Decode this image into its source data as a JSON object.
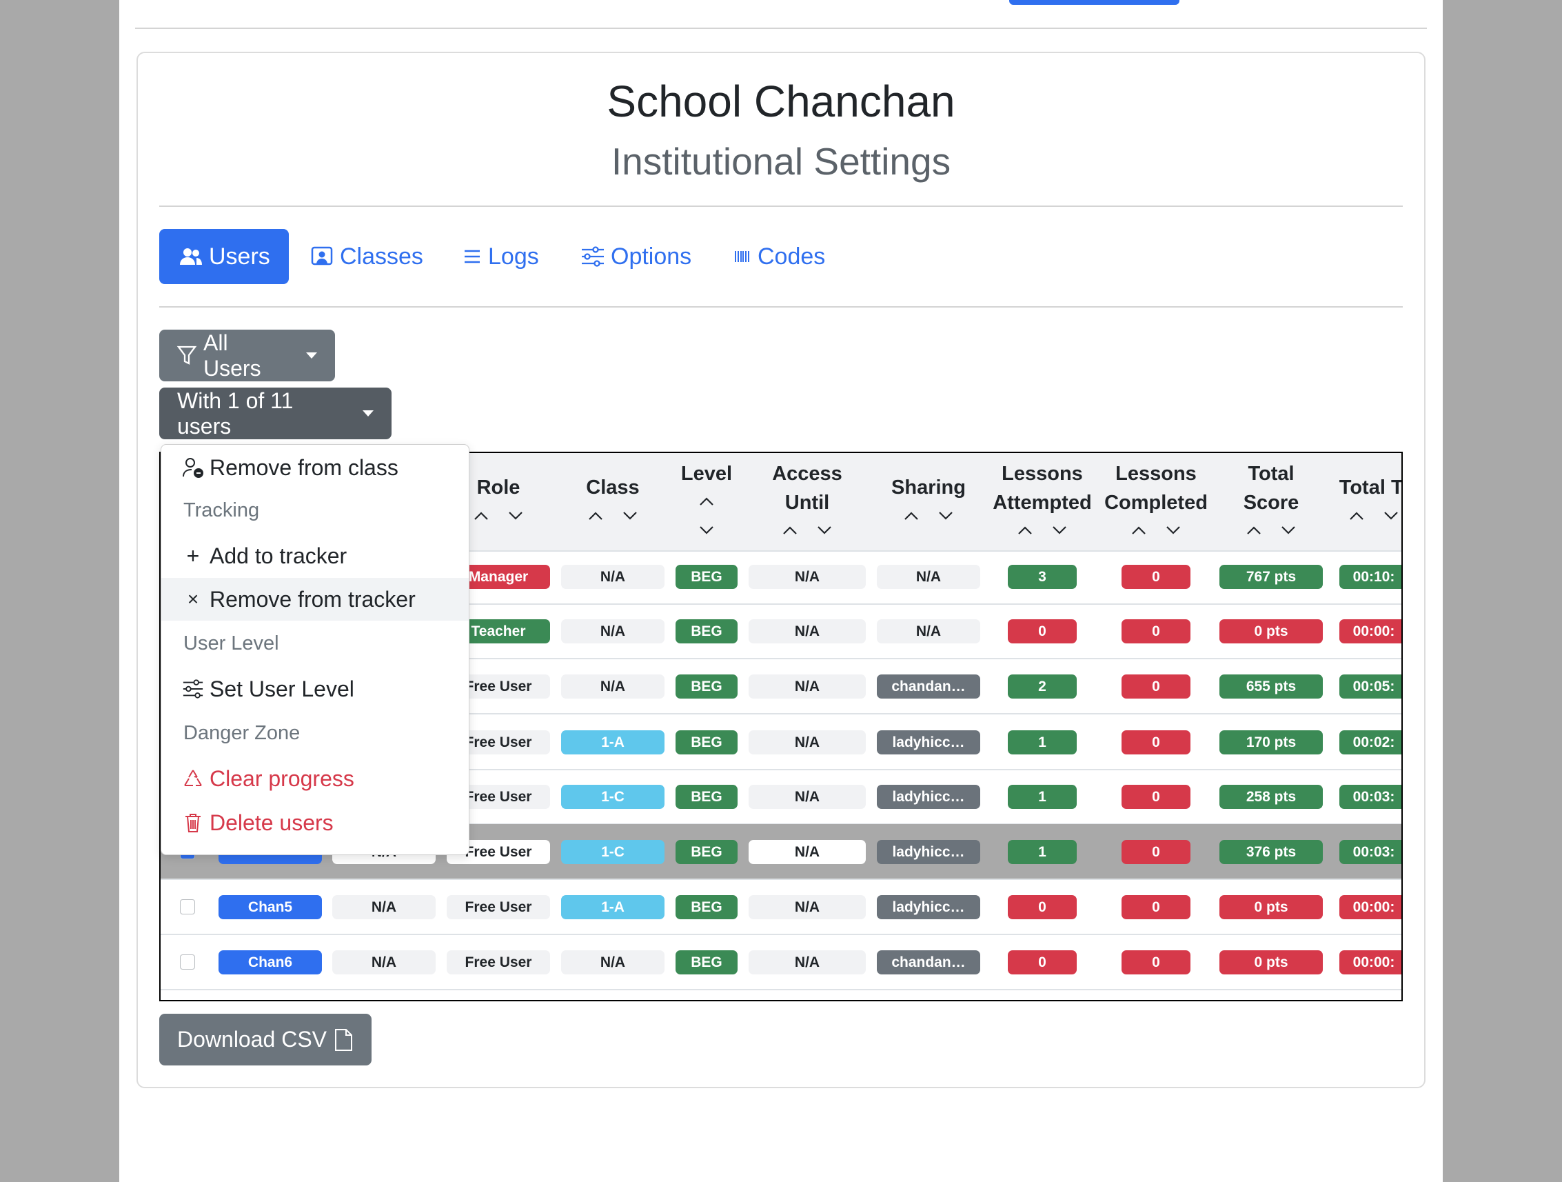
{
  "header": {
    "title": "School Chanchan",
    "subtitle": "Institutional Settings"
  },
  "tabs": [
    "Users",
    "Classes",
    "Logs",
    "Options",
    "Codes"
  ],
  "filter_button": "All Users",
  "action_button": "With 1 of 11 users",
  "menu": [
    "Remove from class",
    "Tracking",
    "Add to tracker",
    "Remove from tracker",
    "User Level",
    "Set User Level",
    "Danger Zone",
    "Clear progress",
    "Delete users"
  ],
  "table": {
    "headers": [
      null,
      null,
      "Role",
      "Class",
      "Level",
      "Access Until",
      "Sharing",
      "Lessons Attempted",
      "Lessons Completed",
      "Total Score",
      "Total Ti"
    ],
    "palette": {
      "b": "#2f6fef",
      "l": "#f1f2f4",
      "w": "#ffffff",
      "r": "#d6394a",
      "g": "#3b8a55",
      "c": "#5fc7ec",
      "k": "#6b737b"
    },
    "rows": [
      {
        "selected": false,
        "cells": [
          null,
          null,
          "Manager",
          "N/A",
          "BEG",
          "N/A",
          "N/A",
          3,
          0,
          "767 pts",
          "00:10:"
        ],
        "tones": [
          "b",
          "l",
          "r",
          "l",
          "g",
          "l",
          "l",
          "g",
          "r",
          "g",
          "g"
        ]
      },
      {
        "selected": false,
        "cells": [
          null,
          null,
          "Teacher",
          "N/A",
          "BEG",
          "N/A",
          "N/A",
          0,
          0,
          "0 pts",
          "00:00:"
        ],
        "tones": [
          "b",
          "l",
          "g",
          "l",
          "g",
          "l",
          "l",
          "r",
          "r",
          "r",
          "r"
        ]
      },
      {
        "selected": false,
        "cells": [
          null,
          null,
          "Free User",
          "N/A",
          "BEG",
          "N/A",
          "chandan…",
          2,
          0,
          "655 pts",
          "00:05:"
        ],
        "tones": [
          "b",
          "l",
          "l",
          "l",
          "g",
          "l",
          "k",
          "g",
          "r",
          "g",
          "g"
        ]
      },
      {
        "selected": false,
        "cells": [
          null,
          null,
          "Free User",
          "1-A",
          "BEG",
          "N/A",
          "ladyhicc…",
          1,
          0,
          "170 pts",
          "00:02:"
        ],
        "tones": [
          "b",
          "l",
          "l",
          "c",
          "g",
          "l",
          "k",
          "g",
          "r",
          "g",
          "g"
        ]
      },
      {
        "selected": false,
        "cells": [
          null,
          null,
          "Free User",
          "1-C",
          "BEG",
          "N/A",
          "ladyhicc…",
          1,
          0,
          "258 pts",
          "00:03:"
        ],
        "tones": [
          "b",
          "l",
          "l",
          "c",
          "g",
          "l",
          "k",
          "g",
          "r",
          "g",
          "g"
        ]
      },
      {
        "selected": true,
        "cells": [
          null,
          "N/A",
          "Free User",
          "1-C",
          "BEG",
          "N/A",
          "ladyhicc…",
          1,
          0,
          "376 pts",
          "00:03:"
        ],
        "tones": [
          "b",
          "w",
          "w",
          "c",
          "g",
          "w",
          "k",
          "g",
          "r",
          "g",
          "g"
        ]
      },
      {
        "selected": false,
        "cells": [
          "Chan5",
          "N/A",
          "Free User",
          "1-A",
          "BEG",
          "N/A",
          "ladyhicc…",
          0,
          0,
          "0 pts",
          "00:00:"
        ],
        "tones": [
          "b",
          "l",
          "l",
          "c",
          "g",
          "l",
          "k",
          "r",
          "r",
          "r",
          "r"
        ]
      },
      {
        "selected": false,
        "cells": [
          "Chan6",
          "N/A",
          "Free User",
          "N/A",
          "BEG",
          "N/A",
          "chandan…",
          0,
          0,
          "0 pts",
          "00:00:"
        ],
        "tones": [
          "b",
          "l",
          "l",
          "l",
          "g",
          "l",
          "k",
          "r",
          "r",
          "r",
          "r"
        ]
      }
    ]
  },
  "download_button": "Download CSV"
}
